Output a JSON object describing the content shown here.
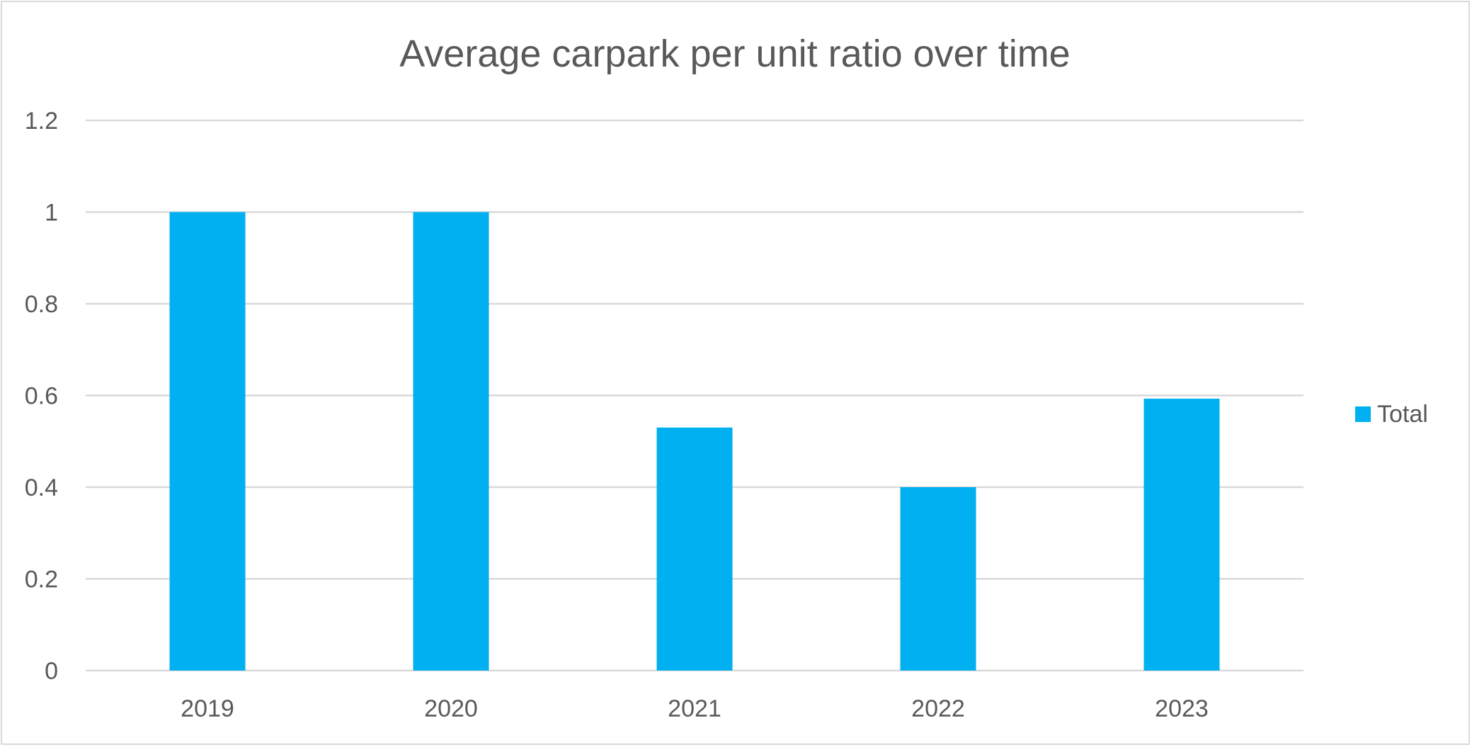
{
  "chart_data": {
    "type": "bar",
    "title": "Average carpark per unit ratio over time",
    "categories": [
      "2019",
      "2020",
      "2021",
      "2022",
      "2023"
    ],
    "series": [
      {
        "name": "Total",
        "values": [
          1.0,
          1.0,
          0.53,
          0.4,
          0.593
        ]
      }
    ],
    "xlabel": "",
    "ylabel": "",
    "ylim": [
      0,
      1.2
    ],
    "yticks": [
      "0",
      "0.2",
      "0.4",
      "0.6",
      "0.8",
      "1",
      "1.2"
    ],
    "ytick_values": [
      0,
      0.2,
      0.4,
      0.6,
      0.8,
      1.0,
      1.2
    ],
    "grid": true,
    "legend_position": "right",
    "colors": {
      "bar": "#00b0f0",
      "grid": "#d9d9d9",
      "text": "#595959",
      "border": "#d9d9d9"
    }
  }
}
